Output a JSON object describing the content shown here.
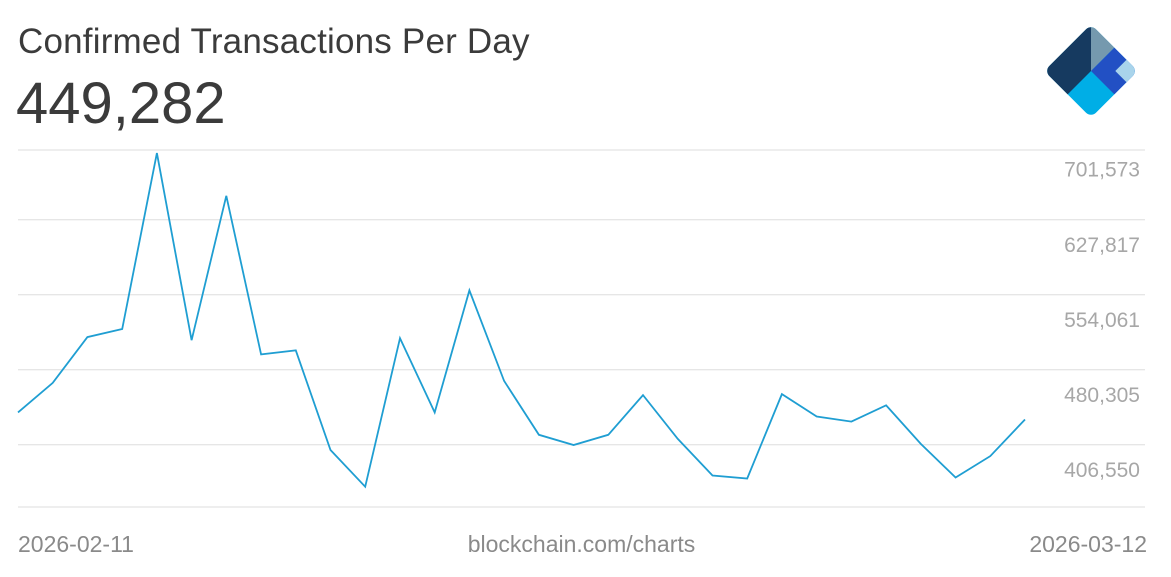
{
  "header": {
    "title": "Confirmed Transactions Per Day",
    "headline_value": "449,282"
  },
  "logo": {
    "icon": "blockchain-logo-icon",
    "colors": [
      "#7599ae",
      "#163a60",
      "#2250c4",
      "#00aee6",
      "#a9d4eb"
    ]
  },
  "footer": {
    "start_date": "2026-02-11",
    "source": "blockchain.com/charts",
    "end_date": "2026-03-12"
  },
  "colors": {
    "line": "#1f9ed2",
    "grid": "#dedede",
    "tick_text": "#a7a7a7",
    "title_text": "#3b3b3b"
  },
  "chart_data": {
    "type": "line",
    "title": "Confirmed Transactions Per Day",
    "x_start": "2026-02-11",
    "x_end": "2026-03-12",
    "x": [
      "2026-02-11",
      "2026-02-12",
      "2026-02-13",
      "2026-02-14",
      "2026-02-15",
      "2026-02-16",
      "2026-02-17",
      "2026-02-18",
      "2026-02-19",
      "2026-02-20",
      "2026-02-21",
      "2026-02-22",
      "2026-02-23",
      "2026-02-24",
      "2026-02-25",
      "2026-02-26",
      "2026-02-27",
      "2026-02-28",
      "2026-03-01",
      "2026-03-02",
      "2026-03-03",
      "2026-03-04",
      "2026-03-05",
      "2026-03-06",
      "2026-03-07",
      "2026-03-08",
      "2026-03-09",
      "2026-03-10",
      "2026-03-11",
      "2026-03-12"
    ],
    "series": [
      {
        "values": [
          462000,
          491000,
          536000,
          544000,
          717000,
          533000,
          675000,
          519000,
          523000,
          425000,
          389000,
          535000,
          462000,
          582000,
          493000,
          440000,
          430000,
          440000,
          479000,
          436000,
          400000,
          397000,
          480000,
          458000,
          453000,
          469000,
          431000,
          398000,
          419000,
          455000
        ]
      }
    ],
    "y_ticks": [
      "701,573",
      "627,817",
      "554,061",
      "480,305",
      "406,550"
    ],
    "y_tick_values": [
      701573,
      627817,
      554061,
      480305,
      406550
    ],
    "ylim": [
      369000,
      720000
    ],
    "grid": true,
    "legend": "none"
  }
}
